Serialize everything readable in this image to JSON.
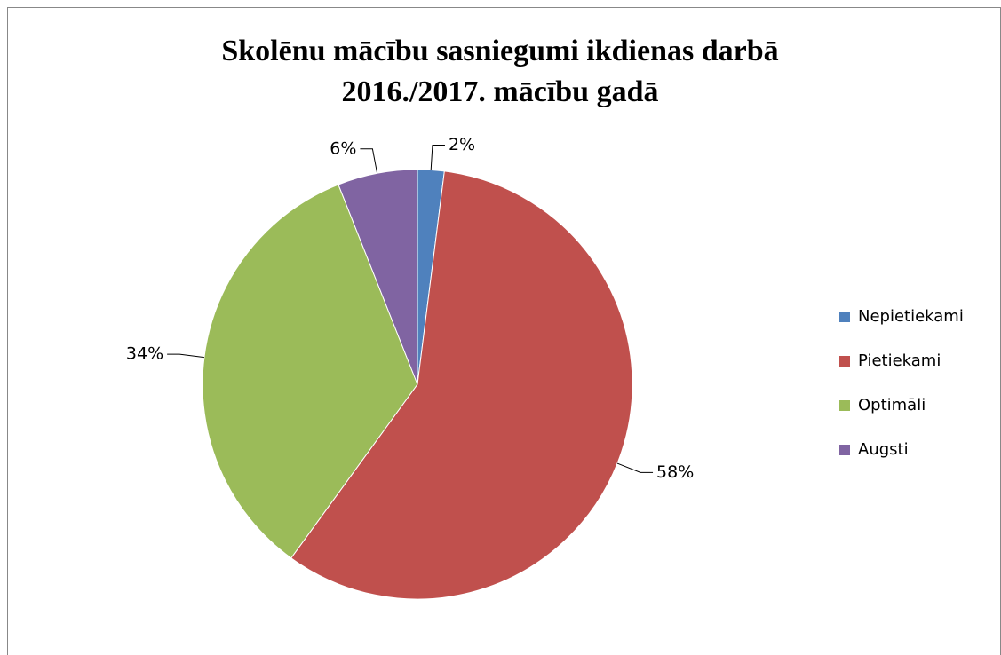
{
  "chart_data": {
    "type": "pie",
    "title": [
      "Skolēnu mācību sasniegumi ikdienas darbā",
      "2016./2017. mācību gadā"
    ],
    "categories": [
      "Nepietiekami",
      "Pietiekami",
      "Optimāli",
      "Augsti"
    ],
    "values": [
      2,
      58,
      34,
      6
    ],
    "value_labels": [
      "2%",
      "58%",
      "34%",
      "6%"
    ],
    "colors": [
      "#4f81bd",
      "#c0504d",
      "#9bbb59",
      "#8064a2"
    ],
    "legend": "right"
  }
}
